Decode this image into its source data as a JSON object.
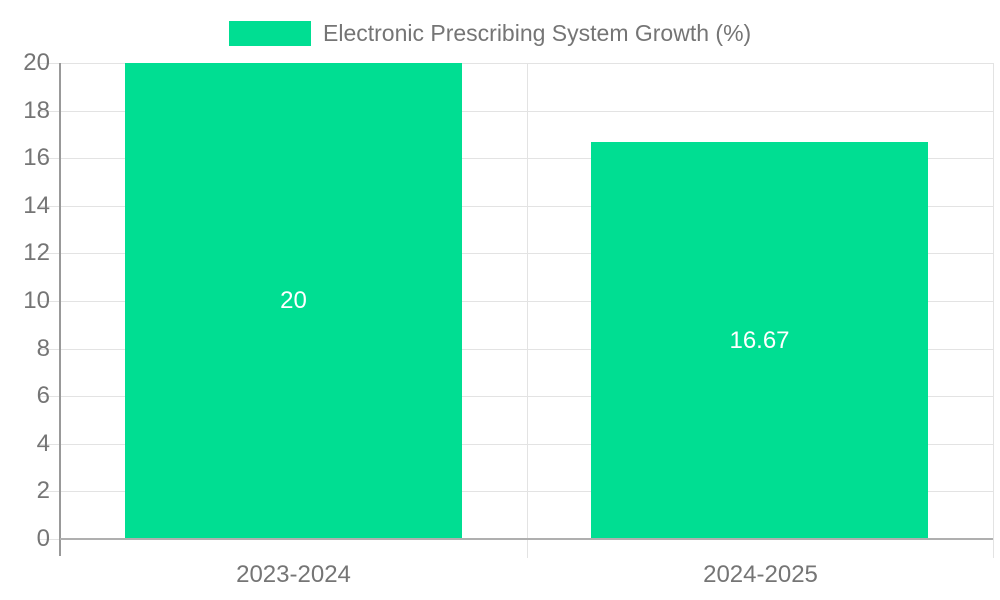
{
  "chart_data": {
    "type": "bar",
    "title": "Electronic Prescribing System Growth (%)",
    "legend": {
      "position": "top",
      "entries": [
        "Electronic Prescribing System Growth (%)"
      ]
    },
    "categories": [
      "2023-2024",
      "2024-2025"
    ],
    "series": [
      {
        "name": "Electronic Prescribing System Growth (%)",
        "values": [
          20,
          16.67
        ]
      }
    ],
    "value_labels": [
      "20",
      "16.67"
    ],
    "xlabel": "",
    "ylabel": "",
    "ylim": [
      0,
      20
    ],
    "ytick_step": 2,
    "ytick_labels": [
      "0",
      "2",
      "4",
      "6",
      "8",
      "10",
      "12",
      "14",
      "16",
      "18",
      "20"
    ],
    "grid": true,
    "colors": {
      "bar": "#00DE92",
      "grid": "#E3E3E3",
      "axis_line": "#999999",
      "baseline": "#AFAFAF",
      "text": "#757575",
      "value_text": "#FFFFFF",
      "background": "#FFFFFF"
    }
  }
}
